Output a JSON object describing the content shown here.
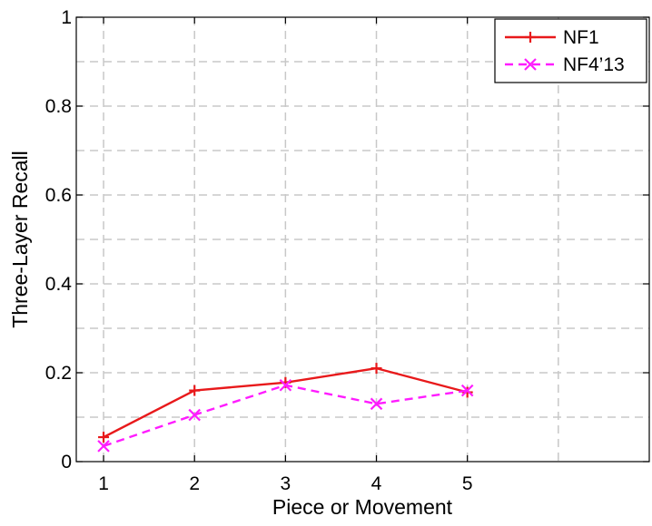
{
  "chart_data": {
    "type": "line",
    "title": "",
    "xlabel": "Piece or Movement",
    "ylabel": "Three-Layer Recall",
    "xlim": [
      0.7,
      7
    ],
    "ylim": [
      0,
      1
    ],
    "x_ticks": [
      1,
      2,
      3,
      4,
      5
    ],
    "x_tick_labels": [
      "1",
      "2",
      "3",
      "4",
      "5"
    ],
    "y_ticks": [
      0,
      0.2,
      0.4,
      0.6,
      0.8,
      1
    ],
    "y_tick_labels": [
      "0",
      "0.2",
      "0.4",
      "0.6",
      "0.8",
      "1"
    ],
    "x_grid": [
      1,
      2,
      3,
      4,
      5,
      6
    ],
    "y_grid": [
      0.1,
      0.2,
      0.3,
      0.4,
      0.5,
      0.6,
      0.7,
      0.8,
      0.9
    ],
    "grid": true,
    "legend_position": "top-right",
    "series": [
      {
        "name": "NF1",
        "x": [
          1,
          2,
          3,
          4,
          5
        ],
        "values": [
          0.055,
          0.16,
          0.178,
          0.21,
          0.156
        ],
        "color": "#e8191b",
        "line_style": "solid",
        "marker": "plus"
      },
      {
        "name": "NF4’13",
        "x": [
          1,
          2,
          3,
          4,
          5
        ],
        "values": [
          0.035,
          0.105,
          0.172,
          0.13,
          0.16
        ],
        "color": "#ff1cff",
        "line_style": "dashed",
        "marker": "x"
      }
    ]
  }
}
